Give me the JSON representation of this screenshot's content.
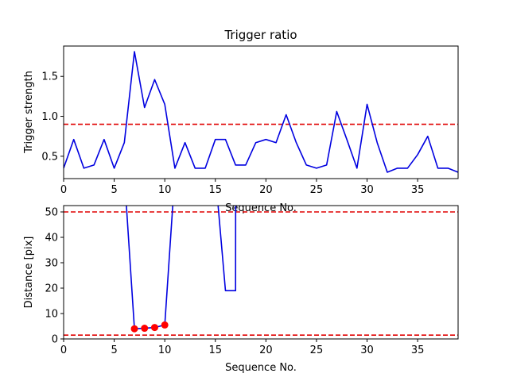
{
  "chart_data": [
    {
      "type": "line",
      "title": "Trigger ratio",
      "xlabel": "Sequence No.",
      "ylabel": "Trigger strength",
      "xlim": [
        0,
        39
      ],
      "ylim": [
        0.22,
        1.88
      ],
      "xticks": [
        0,
        5,
        10,
        15,
        20,
        25,
        30,
        35
      ],
      "xtick_labels": [
        "0",
        "5",
        "10",
        "15",
        "20",
        "25",
        "30",
        "35"
      ],
      "yticks": [
        0.5,
        1.0,
        1.5
      ],
      "ytick_labels": [
        "0.5",
        "1.0",
        "1.5"
      ],
      "threshold": 0.9,
      "threshold_color": "#e00000",
      "series": [
        {
          "color": "#0000e0",
          "x": [
            0,
            1,
            2,
            3,
            4,
            5,
            6,
            7,
            8,
            9,
            10,
            11,
            12,
            13,
            14,
            15,
            16,
            17,
            18,
            19,
            20,
            21,
            22,
            23,
            24,
            25,
            26,
            27,
            28,
            29,
            30,
            31,
            32,
            33,
            34,
            35,
            36,
            37,
            38,
            39
          ],
          "y": [
            0.35,
            0.71,
            0.35,
            0.39,
            0.71,
            0.35,
            0.67,
            1.81,
            1.11,
            1.46,
            1.15,
            0.35,
            0.67,
            0.35,
            0.35,
            0.71,
            0.71,
            0.39,
            0.39,
            0.67,
            0.71,
            0.67,
            1.02,
            0.67,
            0.39,
            0.35,
            0.39,
            1.06,
            0.71,
            0.35,
            1.15,
            0.67,
            0.3,
            0.35,
            0.35,
            0.52,
            0.75,
            0.35,
            0.35,
            0.3
          ]
        }
      ]
    },
    {
      "type": "line",
      "title": "",
      "xlabel": "Sequence No.",
      "ylabel": "Distance [pix]",
      "xlim": [
        0,
        39
      ],
      "ylim": [
        0,
        52.5
      ],
      "xticks": [
        0,
        5,
        10,
        15,
        20,
        25,
        30,
        35
      ],
      "xtick_labels": [
        "0",
        "5",
        "10",
        "15",
        "20",
        "25",
        "30",
        "35"
      ],
      "yticks": [
        0,
        10,
        20,
        30,
        40,
        50
      ],
      "ytick_labels": [
        "0",
        "10",
        "20",
        "30",
        "40",
        "50"
      ],
      "thresholds": [
        50,
        1.5
      ],
      "threshold_color": "#e00000",
      "series": [
        {
          "color": "#0000e0",
          "x": [
            6,
            7,
            8,
            9,
            10,
            11,
            15,
            16,
            17,
            17.01
          ],
          "y": [
            65,
            4.0,
            4.2,
            4.5,
            5.5,
            65,
            65,
            19,
            19,
            65
          ]
        }
      ],
      "markers": {
        "color": "#ff0000",
        "x": [
          7,
          8,
          9,
          10
        ],
        "y": [
          4.0,
          4.2,
          4.5,
          5.5
        ]
      }
    }
  ]
}
